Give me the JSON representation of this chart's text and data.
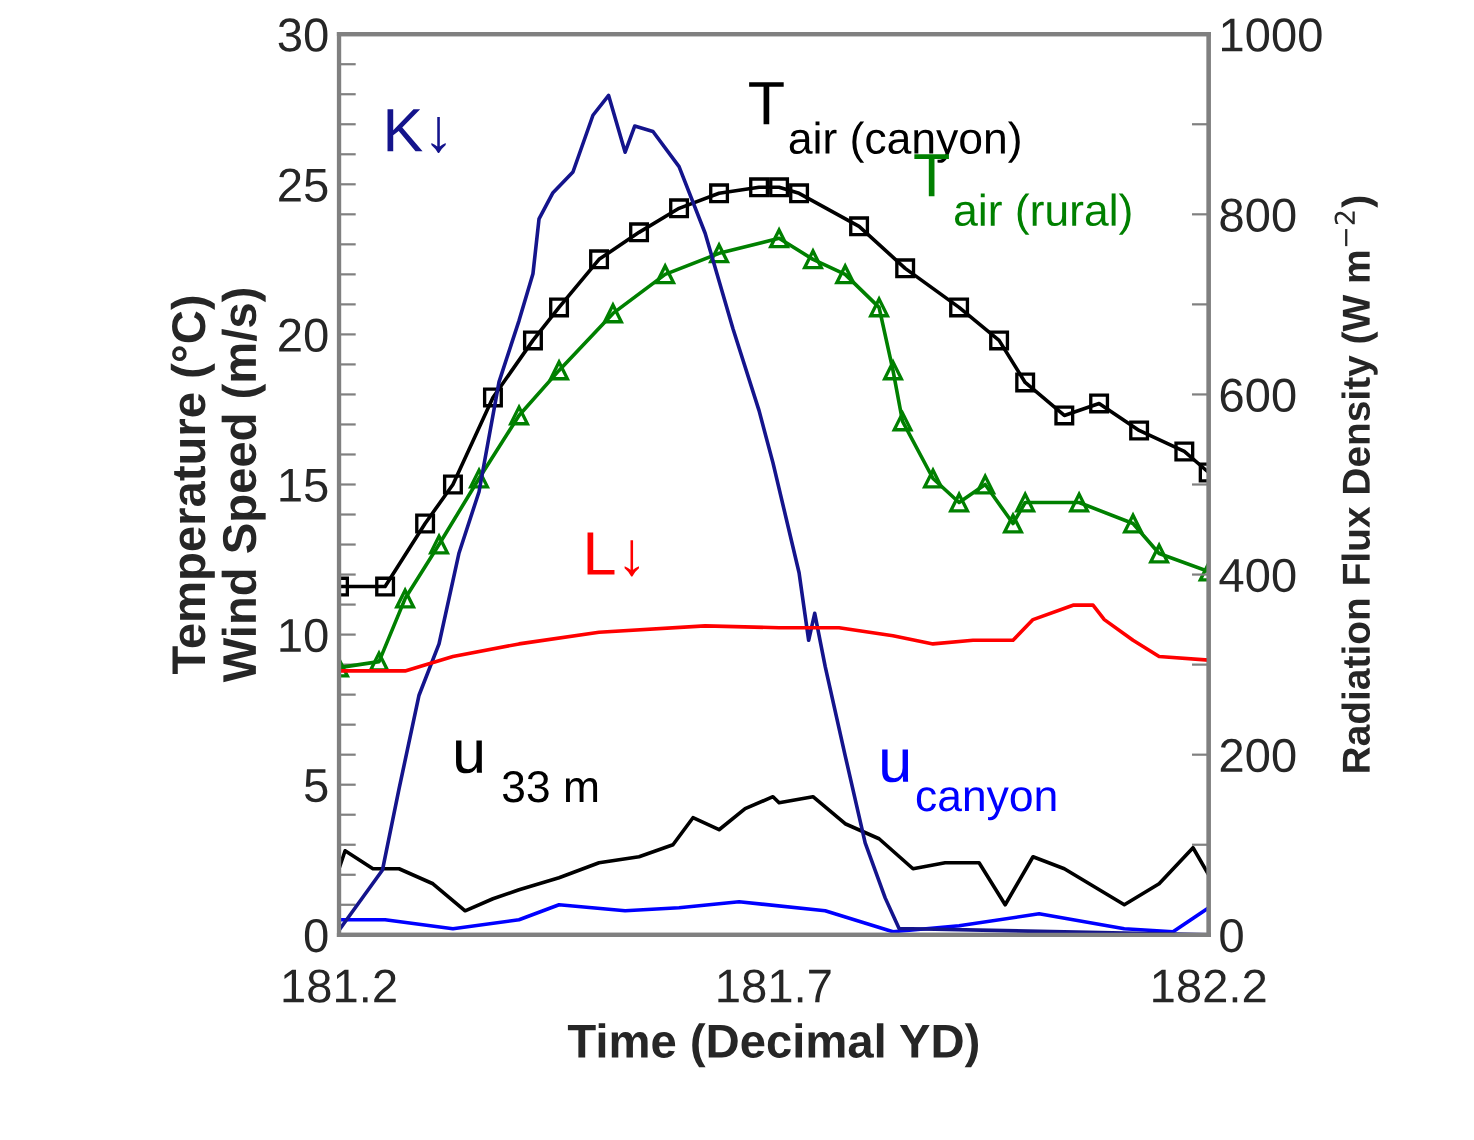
{
  "chart_data": {
    "type": "line",
    "xlabel": "Time (Decimal YD)",
    "ylabel": "Temperature (°C)\nWind Speed (m/s)",
    "y2label": "Radiation Flux Density (W m$^{−2}$)",
    "xlim": [
      181.2,
      182.2
    ],
    "xticks": [
      181.2,
      181.7,
      182.2
    ],
    "ylim": [
      0,
      30
    ],
    "yticks": [
      0,
      {
        "value": 1,
        "label": null
      },
      {
        "value": 2,
        "label": null
      },
      {
        "value": 3,
        "label": null
      },
      {
        "value": 4,
        "label": null
      },
      5,
      {
        "value": 6,
        "label": null
      },
      {
        "value": 7,
        "label": null
      },
      {
        "value": 8,
        "label": null
      },
      {
        "value": 9,
        "label": null
      },
      10,
      {
        "value": 11,
        "label": null
      },
      {
        "value": 12,
        "label": null
      },
      {
        "value": 13,
        "label": null
      },
      {
        "value": 14,
        "label": null
      },
      15,
      {
        "value": 16,
        "label": null
      },
      {
        "value": 17,
        "label": null
      },
      {
        "value": 18,
        "label": null
      },
      {
        "value": 19,
        "label": null
      },
      20,
      {
        "value": 21,
        "label": null
      },
      {
        "value": 22,
        "label": null
      },
      {
        "value": 23,
        "label": null
      },
      {
        "value": 24,
        "label": null
      },
      25,
      {
        "value": 26,
        "label": null
      },
      {
        "value": 27,
        "label": null
      },
      {
        "value": 28,
        "label": null
      },
      {
        "value": 29,
        "label": null
      },
      30
    ],
    "y2lim": [
      0,
      1000
    ],
    "y2ticks": [
      0,
      {
        "value": 100,
        "label": null
      },
      200,
      {
        "value": 300,
        "label": null
      },
      400,
      {
        "value": 500,
        "label": null
      },
      600,
      {
        "value": 700,
        "label": null
      },
      800,
      {
        "value": 900,
        "label": null
      },
      1000
    ],
    "grid": false,
    "legend": false,
    "series": [
      {
        "name": "K↓",
        "color": "#14148c",
        "axis": "y2",
        "x": [
          181.2,
          181.25,
          181.269,
          181.292,
          181.315,
          181.338,
          181.361,
          181.384,
          181.407,
          181.423,
          181.43,
          181.446,
          181.469,
          181.492,
          181.51,
          181.529,
          181.54,
          181.561,
          181.591,
          181.621,
          181.653,
          181.683,
          181.699,
          181.729,
          181.74,
          181.747,
          181.759,
          181.782,
          181.805,
          181.828,
          181.844,
          182.2
        ],
        "values": [
          5,
          72,
          162,
          266,
          323,
          424,
          492,
          614,
          682,
          734,
          795,
          824,
          847,
          910,
          932,
          869,
          898,
          892,
          853,
          779,
          673,
          582,
          524,
          402,
          327,
          357,
          298,
          199,
          102,
          41,
          7,
          0
        ]
      },
      {
        "name": "L↓",
        "color": "#ff0000",
        "axis": "y2",
        "x": [
          181.2,
          181.276,
          181.331,
          181.407,
          181.499,
          181.621,
          181.706,
          181.775,
          181.837,
          181.883,
          181.929,
          181.975,
          181.998,
          182.044,
          182.067,
          182.08,
          182.113,
          182.143,
          182.2
        ],
        "values": [
          293,
          293,
          309,
          323,
          336,
          343,
          341,
          341,
          332,
          323,
          327,
          327,
          350,
          366,
          366,
          350,
          327,
          309,
          305
        ]
      },
      {
        "name": "T$_{air (canyon)}$",
        "color": "#000000",
        "marker": "square",
        "x": [
          181.2,
          181.253,
          181.299,
          181.331,
          181.377,
          181.423,
          181.453,
          181.499,
          181.545,
          181.591,
          181.637,
          181.683,
          181.706,
          181.729,
          181.798,
          181.851,
          181.913,
          181.959,
          181.989,
          182.034,
          182.074,
          182.12,
          182.172,
          182.2
        ],
        "values": [
          11.6,
          11.6,
          13.7,
          15.0,
          17.9,
          19.8,
          20.9,
          22.5,
          23.4,
          24.2,
          24.7,
          24.9,
          24.9,
          24.7,
          23.6,
          22.2,
          20.9,
          19.8,
          18.4,
          17.3,
          17.7,
          16.8,
          16.1,
          15.4
        ]
      },
      {
        "name": "T$_{air (rural)}$",
        "color": "#008000",
        "marker": "triangle",
        "x": [
          181.2,
          181.246,
          181.276,
          181.315,
          181.361,
          181.407,
          181.453,
          181.515,
          181.575,
          181.637,
          181.706,
          181.745,
          181.782,
          181.821,
          181.837,
          181.848,
          181.883,
          181.913,
          181.943,
          181.975,
          181.989,
          182.051,
          182.113,
          182.143,
          182.2
        ],
        "values": [
          8.9,
          9.1,
          11.2,
          13.0,
          15.2,
          17.3,
          18.8,
          20.7,
          22.0,
          22.7,
          23.2,
          22.5,
          22.0,
          20.9,
          18.8,
          17.1,
          15.2,
          14.4,
          15.0,
          13.7,
          14.4,
          14.4,
          13.7,
          12.7,
          12.1
        ]
      },
      {
        "name": "u$_{ 33 m}$",
        "color": "#000000",
        "x": [
          181.2,
          181.207,
          181.239,
          181.269,
          181.308,
          181.345,
          181.377,
          181.407,
          181.453,
          181.499,
          181.545,
          181.584,
          181.607,
          181.637,
          181.667,
          181.699,
          181.706,
          181.745,
          181.782,
          181.821,
          181.86,
          181.897,
          181.936,
          181.966,
          181.998,
          182.034,
          182.103,
          182.143,
          182.182,
          182.2
        ],
        "values": [
          2.2,
          2.8,
          2.2,
          2.2,
          1.7,
          0.8,
          1.2,
          1.5,
          1.9,
          2.4,
          2.6,
          3.0,
          3.9,
          3.5,
          4.2,
          4.6,
          4.4,
          4.6,
          3.7,
          3.2,
          2.2,
          2.4,
          2.4,
          1.0,
          2.6,
          2.2,
          1.0,
          1.7,
          2.9,
          2.0
        ]
      },
      {
        "name": "u$_{canyon}$",
        "color": "#0000ff",
        "x": [
          181.2,
          181.253,
          181.331,
          181.407,
          181.453,
          181.529,
          181.591,
          181.66,
          181.759,
          181.837,
          181.913,
          182.005,
          182.103,
          182.159,
          182.2
        ],
        "values": [
          0.5,
          0.5,
          0.2,
          0.5,
          1.0,
          0.8,
          0.9,
          1.1,
          0.8,
          0.1,
          0.3,
          0.7,
          0.2,
          0.1,
          0.9
        ]
      }
    ]
  }
}
